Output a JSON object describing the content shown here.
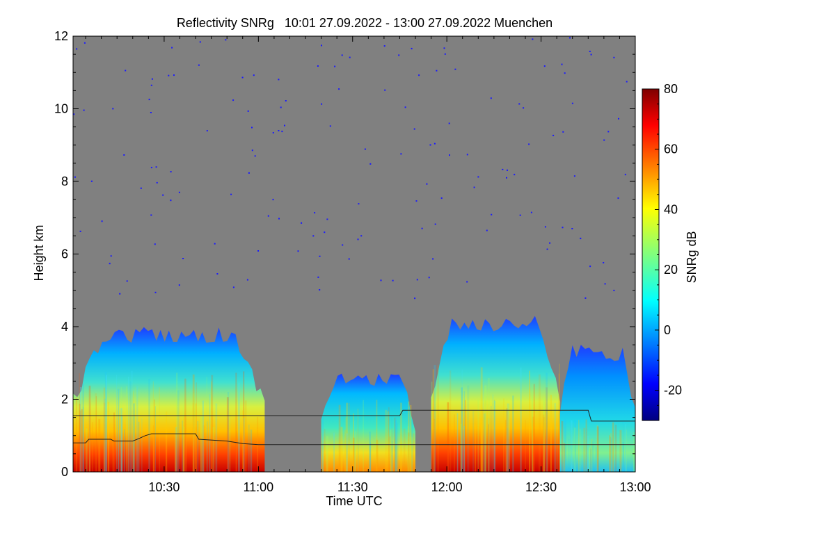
{
  "chart_data": {
    "type": "heatmap",
    "title": "Reflectivity SNRg   10:01 27.09.2022 - 13:00 27.09.2022 Muenchen",
    "xlabel": "Time UTC",
    "ylabel": "Height km",
    "colorbar_label": "SNRg dB",
    "xlim": [
      "10:01",
      "13:00"
    ],
    "ylim": [
      0,
      12
    ],
    "x_ticks": [
      "10:30",
      "11:00",
      "11:30",
      "12:00",
      "12:30",
      "13:00"
    ],
    "y_ticks": [
      0,
      2,
      4,
      6,
      8,
      10,
      12
    ],
    "colorbar_range": [
      -30,
      80
    ],
    "colorbar_ticks": [
      -20,
      0,
      20,
      40,
      60,
      80
    ],
    "colormap": "jet",
    "background_color": "#808080",
    "echo_regions": [
      {
        "start": "10:01",
        "end": "11:02",
        "top_km": 4.0,
        "core_top_km": 2.8,
        "max_snr_db": 70
      },
      {
        "start": "11:20",
        "end": "11:50",
        "top_km": 2.8,
        "core_top_km": 2.0,
        "max_snr_db": 55
      },
      {
        "start": "11:55",
        "end": "12:36",
        "top_km": 4.3,
        "core_top_km": 3.0,
        "max_snr_db": 75
      },
      {
        "start": "12:36",
        "end": "13:00",
        "top_km": 3.5,
        "core_top_km": 1.5,
        "max_snr_db": 40
      }
    ],
    "series": [
      {
        "points": [
          [
            "10:01",
            1.55
          ],
          [
            "11:45",
            1.55
          ],
          [
            "11:46",
            1.7
          ],
          [
            "12:45",
            1.7
          ],
          [
            "12:46",
            1.4
          ],
          [
            "13:00",
            1.4
          ]
        ]
      },
      {
        "points": [
          [
            "10:01",
            0.8
          ],
          [
            "10:05",
            0.8
          ],
          [
            "10:06",
            0.9
          ],
          [
            "10:13",
            0.9
          ],
          [
            "10:14",
            0.85
          ],
          [
            "10:20",
            0.85
          ],
          [
            "10:22",
            0.92
          ],
          [
            "10:24",
            1.0
          ],
          [
            "10:26",
            1.05
          ],
          [
            "10:40",
            1.05
          ],
          [
            "10:41",
            0.9
          ],
          [
            "10:50",
            0.85
          ],
          [
            "10:55",
            0.78
          ],
          [
            "11:00",
            0.75
          ],
          [
            "13:00",
            0.75
          ]
        ]
      }
    ]
  }
}
